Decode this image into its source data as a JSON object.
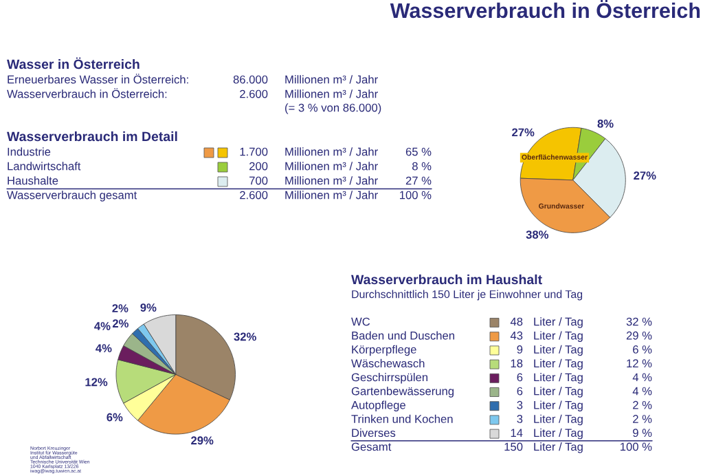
{
  "chart_data": [
    {
      "type": "other",
      "title": "Wasserverbrauch in Österreich",
      "annotations": [
        "Norbert Kreuzinger",
        "Institut für Wassergüte",
        "und Abfallwirtschaft",
        "Technische Universität Wien",
        "1040 Karlsplatz 13/226",
        "iwag@iwag.tuwien.ac.at"
      ]
    },
    {
      "type": "other",
      "title": "Wasser in Österreich",
      "annotations": [
        "Erneuerbares Wasser in Österreich:",
        "86.000",
        "Millionen m³ / Jahr",
        "Wasserverbrauch in Österreich:",
        "2.600",
        "Millionen m³ / Jahr",
        "(= 3 % von 86.000)"
      ]
    },
    {
      "type": "other",
      "title": "Wasserverbrauch im Detail",
      "colors": [
        "#ef9a45",
        "#f5c400",
        "#9acd3c",
        "#dcedf0"
      ],
      "annotations": [
        "Industrie",
        "1.700",
        "Millionen m³ / Jahr",
        "65 %",
        "Landwirtschaft",
        "200",
        "Millionen m³ / Jahr",
        "8 %",
        "Haushalte",
        "700",
        "Millionen m³ / Jahr",
        "27 %",
        "Wasserverbrauch gesamt",
        "2.600",
        "Millionen m³ / Jahr",
        "100 %"
      ]
    },
    {
      "type": "pie",
      "categories": [
        "Oberflächenwasser",
        null,
        null,
        "Grundwasser"
      ],
      "values": [
        27,
        8,
        27,
        38
      ],
      "colors": [
        "#f5c400",
        "#9acd3c",
        "#dcedf0",
        "#ef9a45"
      ],
      "value_labels": [
        "27%",
        "8%",
        "27%",
        "38%"
      ]
    },
    {
      "type": "other",
      "title": "Wasserverbrauch im Haushalt",
      "subtitle": "Durchschnittlich 150 Liter je Einwohner und Tag",
      "colors": [
        "#9b8468",
        "#ef9a45",
        "#ffff99",
        "#b7dc7a",
        "#6b1d5e",
        "#9bb58a",
        "#2f6eae",
        "#7ec8ee",
        "#d9d9d9"
      ],
      "annotations": [
        "WC",
        "48",
        "Liter / Tag",
        "32 %",
        "Baden und Duschen",
        "43",
        "Liter / Tag",
        "29 %",
        "Körperpflege",
        "9",
        "Liter / Tag",
        "6 %",
        "Wäschewasch",
        "18",
        "Liter / Tag",
        "12 %",
        "Geschirrspülen",
        "6",
        "Liter / Tag",
        "4 %",
        "Gartenbewässerung",
        "6",
        "Liter / Tag",
        "4 %",
        "Autopflege",
        "3",
        "Liter / Tag",
        "2 %",
        "Trinken und Kochen",
        "3",
        "Liter / Tag",
        "2 %",
        "Diverses",
        "14",
        "Liter / Tag",
        "9 %",
        "Gesamt",
        "150",
        "Liter / Tag",
        "100 %"
      ]
    },
    {
      "type": "pie",
      "categories": [
        null,
        null,
        null,
        null,
        null,
        null,
        null,
        null,
        null
      ],
      "values": [
        32,
        29,
        6,
        12,
        4,
        4,
        2,
        2,
        9
      ],
      "colors": [
        "#9b8468",
        "#ef9a45",
        "#ffff99",
        "#b7dc7a",
        "#6b1d5e",
        "#9bb58a",
        "#2f6eae",
        "#7ec8ee",
        "#d9d9d9"
      ],
      "value_labels": [
        "32%",
        "29%",
        "6%",
        "12%",
        "4%",
        "4%",
        "2%",
        "2%",
        "9%"
      ]
    }
  ]
}
